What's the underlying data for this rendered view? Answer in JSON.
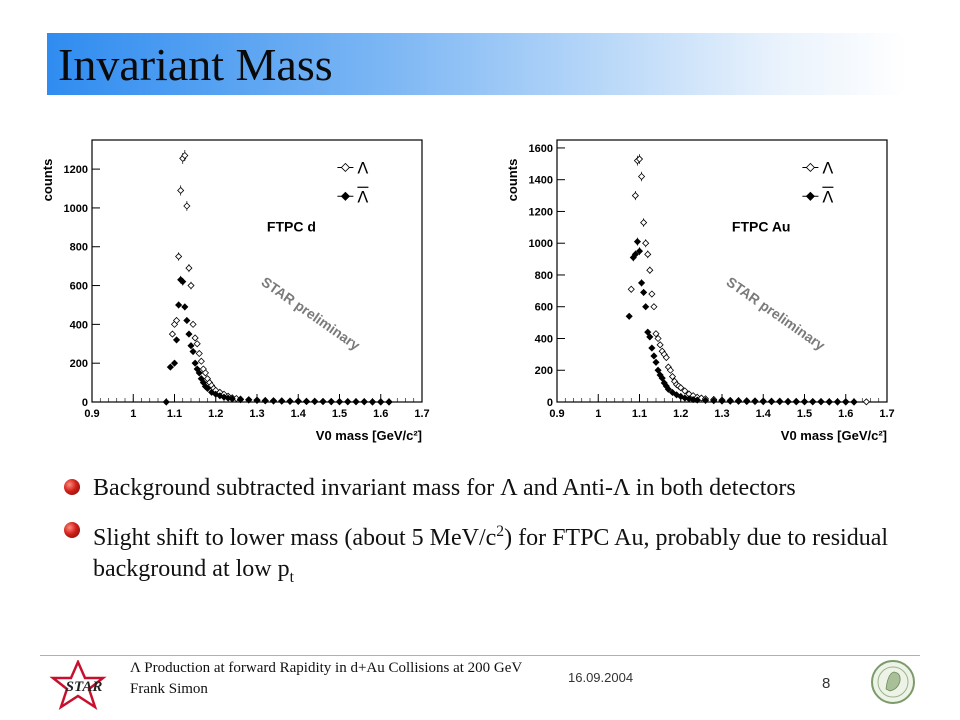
{
  "slide": {
    "title": "Invariant Mass",
    "bullets": [
      {
        "parts": [
          "Background subtracted invariant mass for ",
          "Λ",
          " and Anti-",
          "Λ",
          " in both detectors"
        ]
      },
      {
        "parts": [
          "Slight shift to lower mass (about 5 MeV/c",
          "2",
          ") for FTPC Au, probably due to residual background at low p",
          "t"
        ]
      }
    ]
  },
  "footer": {
    "title_symbol": "Λ",
    "title": "Production at forward Rapidity in d+Au Collisions at 200 GeV",
    "author": "Frank Simon",
    "date": "16.09.2004",
    "page": "8",
    "logo_text": "STAR"
  },
  "colors": {
    "accent_bullet": "#d0201a",
    "title_gradient_start": "#2f8cf0",
    "title_gradient_end": "#ffffff"
  },
  "chart_data": [
    {
      "type": "scatter",
      "label": "FTPC d",
      "xlabel": "V0 mass [GeV/c²]",
      "ylabel": "counts",
      "watermark": "STAR preliminary",
      "xlim": [
        0.9,
        1.7
      ],
      "ylim": [
        0,
        1350
      ],
      "xticks": [
        0.9,
        1,
        1.1,
        1.2,
        1.3,
        1.4,
        1.5,
        1.6,
        1.7
      ],
      "yticks": [
        0,
        200,
        400,
        600,
        800,
        1000,
        1200
      ],
      "legend": [
        "Λ",
        "Λ̄"
      ],
      "legend_position": "top-right",
      "series": [
        {
          "name": "Λ",
          "marker": "open-diamond",
          "x": [
            1.095,
            1.1,
            1.105,
            1.11,
            1.115,
            1.12,
            1.125,
            1.13,
            1.135,
            1.14,
            1.145,
            1.15,
            1.155,
            1.16,
            1.165,
            1.17,
            1.175,
            1.18,
            1.185,
            1.19,
            1.195,
            1.2,
            1.21,
            1.22,
            1.23,
            1.24,
            1.25,
            1.26,
            1.28,
            1.3,
            1.32,
            1.34,
            1.36,
            1.38,
            1.4,
            1.42,
            1.44,
            1.46,
            1.48,
            1.5,
            1.52,
            1.54,
            1.56,
            1.58,
            1.6,
            1.62
          ],
          "y": [
            350,
            400,
            420,
            750,
            1090,
            1255,
            1270,
            1010,
            690,
            600,
            400,
            330,
            300,
            250,
            210,
            170,
            150,
            120,
            100,
            85,
            70,
            60,
            50,
            40,
            30,
            22,
            18,
            15,
            12,
            10,
            8,
            7,
            6,
            5,
            5,
            4,
            4,
            3,
            3,
            2,
            2,
            2,
            2,
            1,
            1,
            1
          ]
        },
        {
          "name": "Λ̄",
          "marker": "filled-diamond",
          "x": [
            1.08,
            1.09,
            1.1,
            1.105,
            1.11,
            1.115,
            1.12,
            1.125,
            1.13,
            1.135,
            1.14,
            1.145,
            1.15,
            1.155,
            1.16,
            1.165,
            1.17,
            1.175,
            1.18,
            1.19,
            1.2,
            1.21,
            1.22,
            1.23,
            1.24,
            1.26,
            1.28,
            1.3,
            1.32,
            1.34,
            1.36,
            1.38,
            1.4,
            1.42,
            1.44,
            1.46,
            1.48,
            1.5,
            1.52,
            1.54,
            1.56,
            1.58,
            1.6,
            1.62
          ],
          "y": [
            0,
            180,
            200,
            320,
            500,
            630,
            620,
            490,
            420,
            350,
            290,
            260,
            200,
            170,
            150,
            120,
            100,
            80,
            70,
            50,
            40,
            32,
            25,
            20,
            16,
            12,
            10,
            8,
            6,
            5,
            4,
            3,
            3,
            2,
            2,
            2,
            1,
            1,
            1,
            1,
            1,
            0,
            0,
            0
          ]
        }
      ]
    },
    {
      "type": "scatter",
      "label": "FTPC Au",
      "xlabel": "V0 mass [GeV/c²]",
      "ylabel": "counts",
      "watermark": "STAR preliminary",
      "xlim": [
        0.9,
        1.7
      ],
      "ylim": [
        0,
        1650
      ],
      "xticks": [
        0.9,
        1,
        1.1,
        1.2,
        1.3,
        1.4,
        1.5,
        1.6,
        1.7
      ],
      "yticks": [
        0,
        200,
        400,
        600,
        800,
        1000,
        1200,
        1400,
        1600
      ],
      "legend": [
        "Λ",
        "Λ̄"
      ],
      "legend_position": "top-right",
      "series": [
        {
          "name": "Λ",
          "marker": "open-diamond",
          "x": [
            1.08,
            1.09,
            1.095,
            1.1,
            1.105,
            1.11,
            1.115,
            1.12,
            1.125,
            1.13,
            1.135,
            1.14,
            1.145,
            1.15,
            1.155,
            1.16,
            1.165,
            1.17,
            1.175,
            1.18,
            1.185,
            1.19,
            1.195,
            1.2,
            1.21,
            1.22,
            1.23,
            1.24,
            1.25,
            1.26,
            1.28,
            1.3,
            1.32,
            1.34,
            1.36,
            1.38,
            1.4,
            1.42,
            1.44,
            1.46,
            1.48,
            1.5,
            1.52,
            1.54,
            1.56,
            1.58,
            1.6,
            1.62,
            1.65
          ],
          "y": [
            710,
            1300,
            1520,
            1530,
            1420,
            1130,
            1000,
            930,
            830,
            680,
            600,
            430,
            400,
            360,
            320,
            300,
            280,
            220,
            200,
            160,
            130,
            110,
            100,
            90,
            70,
            50,
            40,
            30,
            25,
            20,
            16,
            12,
            10,
            9,
            8,
            7,
            6,
            5,
            5,
            4,
            4,
            3,
            3,
            3,
            2,
            2,
            2,
            1,
            1
          ]
        },
        {
          "name": "Λ̄",
          "marker": "filled-diamond",
          "x": [
            1.075,
            1.085,
            1.09,
            1.095,
            1.1,
            1.105,
            1.11,
            1.115,
            1.12,
            1.125,
            1.13,
            1.135,
            1.14,
            1.145,
            1.15,
            1.155,
            1.16,
            1.165,
            1.17,
            1.18,
            1.19,
            1.2,
            1.21,
            1.22,
            1.23,
            1.24,
            1.26,
            1.28,
            1.3,
            1.32,
            1.34,
            1.36,
            1.38,
            1.4,
            1.42,
            1.44,
            1.46,
            1.48,
            1.5,
            1.52,
            1.54,
            1.56,
            1.58,
            1.6,
            1.62
          ],
          "y": [
            540,
            910,
            930,
            1010,
            950,
            750,
            690,
            600,
            440,
            410,
            340,
            290,
            250,
            200,
            170,
            150,
            120,
            100,
            80,
            60,
            45,
            35,
            25,
            20,
            15,
            12,
            10,
            8,
            6,
            5,
            4,
            3,
            3,
            2,
            2,
            2,
            1,
            1,
            1,
            1,
            1,
            0,
            0,
            0,
            0
          ]
        }
      ]
    }
  ]
}
